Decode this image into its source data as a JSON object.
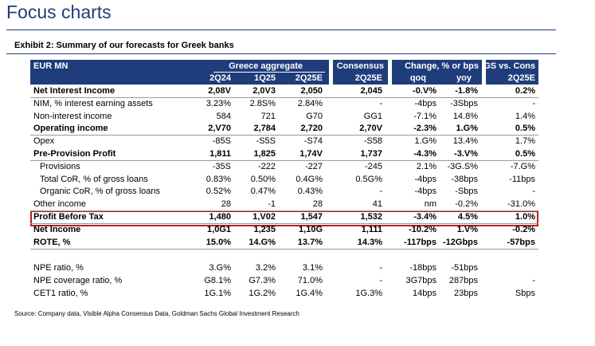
{
  "header": {
    "title": "Focus charts"
  },
  "exhibit": "Exhibit 2: Summary of our forecasts for Greek banks",
  "table": {
    "header_top": [
      "EUR MN",
      "Greece aggregate",
      "Consensus",
      "Change, % or bps",
      "GS vs. Cons"
    ],
    "header_sub": [
      "2Q24",
      "1Q25",
      "2Q25E",
      "2Q25E",
      "qoq",
      "yoy",
      "2Q25E"
    ],
    "rows": [
      [
        "Net Interest Income",
        "2,08V",
        "2,0V3",
        "2,050",
        "2,045",
        "-0.V%",
        "-1.8%",
        "0.2%"
      ],
      [
        "NIM, % interest earning assets",
        "3.23%",
        "2.8S%",
        "2.84%",
        "-",
        "-4bps",
        "-3Sbps",
        "-"
      ],
      [
        "Non-interest income",
        "584",
        "721",
        "G70",
        "GG1",
        "-7.1%",
        "14.8%",
        "1.4%"
      ],
      [
        "Operating income",
        "2,V70",
        "2,784",
        "2,720",
        "2,70V",
        "-2.3%",
        "1.G%",
        "0.5%"
      ],
      [
        "Opex",
        "-85S",
        "-S5S",
        "-S74",
        "-S58",
        "1.G%",
        "13.4%",
        "1.7%"
      ],
      [
        "Pre-Provision Profit",
        "1,811",
        "1,825",
        "1,74V",
        "1,737",
        "-4.3%",
        "-3.V%",
        "0.5%"
      ],
      [
        "Provisions",
        "-35S",
        "-222",
        "-227",
        "-245",
        "2.1%",
        "-3G.S%",
        "-7.G%"
      ],
      [
        "Total CoR, % of gross loans",
        "0.83%",
        "0.50%",
        "0.4G%",
        "0.5G%",
        "-4bps",
        "-38bps",
        "-11bps"
      ],
      [
        "Organic CoR, % of gross loans",
        "0.52%",
        "0.47%",
        "0.43%",
        "-",
        "-4bps",
        "-Sbps",
        "-"
      ],
      [
        "Other income",
        "28",
        "-1",
        "28",
        "41",
        "nm",
        "-0.2%",
        "-31.0%"
      ],
      [
        "Profit Before Tax",
        "1,480",
        "1,V02",
        "1,547",
        "1,532",
        "-3.4%",
        "4.5%",
        "1.0%"
      ],
      [
        "Net Income",
        "1,0G1",
        "1,235",
        "1,10G",
        "1,111",
        "-10.2%",
        "1.V%",
        "-0.2%"
      ],
      [
        "ROTE, %",
        "15.0%",
        "14.G%",
        "13.7%",
        "14.3%",
        "-117bps",
        "-12Gbps",
        "-57bps"
      ],
      [
        "NPE ratio, %",
        "3.G%",
        "3.2%",
        "3.1%",
        "-",
        "-18bps",
        "-51bps"
      ],
      [
        "NPE coverage ratio, %",
        "G8.1%",
        "G7.3%",
        "71.0%",
        "-",
        "3G7bps",
        "287bps",
        "-"
      ],
      [
        "CET1 ratio, %",
        "1G.1%",
        "1G.2%",
        "1G.4%",
        "1G.3%",
        "14bps",
        "23bps",
        "Sbps"
      ]
    ]
  },
  "source": "Source: Company data, Visible Alpha Consensus Data, Goldman Sachs Global Investment Research"
}
